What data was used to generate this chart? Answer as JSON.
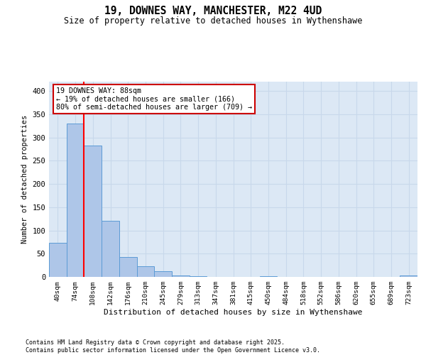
{
  "title_line1": "19, DOWNES WAY, MANCHESTER, M22 4UD",
  "title_line2": "Size of property relative to detached houses in Wythenshawe",
  "xlabel": "Distribution of detached houses by size in Wythenshawe",
  "ylabel": "Number of detached properties",
  "categories": [
    "40sqm",
    "74sqm",
    "108sqm",
    "142sqm",
    "176sqm",
    "210sqm",
    "245sqm",
    "279sqm",
    "313sqm",
    "347sqm",
    "381sqm",
    "415sqm",
    "450sqm",
    "484sqm",
    "518sqm",
    "552sqm",
    "586sqm",
    "620sqm",
    "655sqm",
    "689sqm",
    "723sqm"
  ],
  "values": [
    74,
    330,
    283,
    120,
    43,
    23,
    12,
    3,
    1,
    0,
    0,
    0,
    2,
    0,
    0,
    0,
    0,
    0,
    0,
    0,
    3
  ],
  "bar_color": "#aec6e8",
  "bar_edge_color": "#5b9bd5",
  "grid_color": "#c8d8eb",
  "background_color": "#dce8f5",
  "red_line_x": 1.5,
  "annotation_text": "19 DOWNES WAY: 88sqm\n← 19% of detached houses are smaller (166)\n80% of semi-detached houses are larger (709) →",
  "annotation_box_facecolor": "#ffffff",
  "annotation_box_edgecolor": "#cc0000",
  "ylim": [
    0,
    420
  ],
  "yticks": [
    0,
    50,
    100,
    150,
    200,
    250,
    300,
    350,
    400
  ],
  "footer_line1": "Contains HM Land Registry data © Crown copyright and database right 2025.",
  "footer_line2": "Contains public sector information licensed under the Open Government Licence v3.0."
}
